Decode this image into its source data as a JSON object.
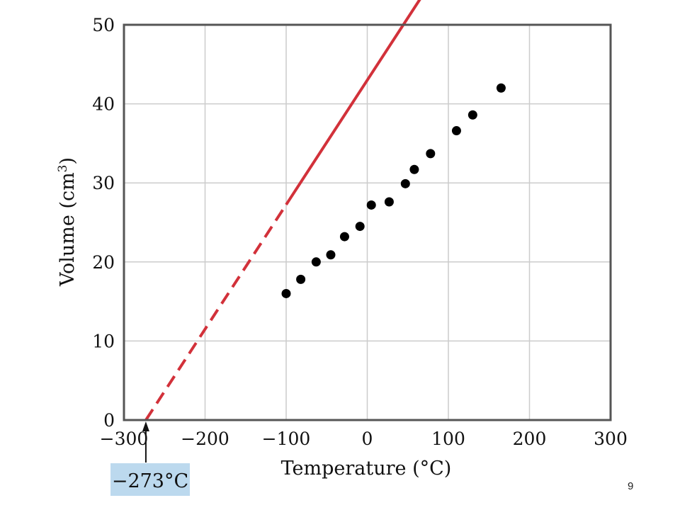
{
  "chart_data": {
    "type": "scatter",
    "xlabel": "Temperature (°C)",
    "ylabel_main": "Volume (cm",
    "ylabel_sup": "3",
    "ylabel_close": ")",
    "xlim": [
      -300,
      300
    ],
    "ylim": [
      0,
      50
    ],
    "x_ticks": [
      -300,
      -200,
      -100,
      0,
      100,
      200,
      300
    ],
    "x_tick_labels": [
      "−300",
      "−200",
      "−100",
      "0",
      "100",
      "200",
      "300"
    ],
    "y_ticks": [
      0,
      10,
      20,
      30,
      40,
      50
    ],
    "y_tick_labels": [
      "0",
      "10",
      "20",
      "30",
      "40",
      "50"
    ],
    "grid": true,
    "points": [
      {
        "x": -100,
        "y": 16.0
      },
      {
        "x": -82,
        "y": 17.8
      },
      {
        "x": -63,
        "y": 20.0
      },
      {
        "x": -45,
        "y": 20.9
      },
      {
        "x": -28,
        "y": 23.2
      },
      {
        "x": -9,
        "y": 24.5
      },
      {
        "x": 5,
        "y": 27.2
      },
      {
        "x": 27,
        "y": 27.6
      },
      {
        "x": 47,
        "y": 29.9
      },
      {
        "x": 58,
        "y": 31.7
      },
      {
        "x": 78,
        "y": 33.7
      },
      {
        "x": 110,
        "y": 36.6
      },
      {
        "x": 130,
        "y": 38.6
      },
      {
        "x": 165,
        "y": 42.0
      }
    ],
    "fit_line": {
      "solid_from_x": -100,
      "to_x": 183,
      "extrapolated_from_x": -273,
      "slope_per_degree": 0.1575,
      "x_intercept": -273,
      "color": "#d2313a"
    },
    "point_color": "#000000",
    "frame_color": "#555555",
    "grid_color": "#cccccc",
    "annotation": {
      "text": "−273°C",
      "x": -273,
      "highlight_color": "#bcd9ee"
    }
  },
  "page": {
    "number": "9"
  }
}
